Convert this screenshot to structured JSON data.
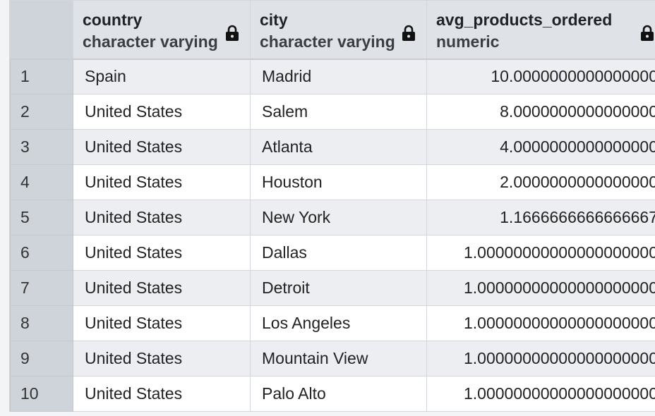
{
  "columns": [
    {
      "name": "country",
      "type": "character varying",
      "locked": true
    },
    {
      "name": "city",
      "type": "character varying",
      "locked": true
    },
    {
      "name": "avg_products_ordered",
      "type": "numeric",
      "locked": true
    }
  ],
  "rows": [
    {
      "num": "1",
      "country": "Spain",
      "city": "Madrid",
      "avg": "10.0000000000000000"
    },
    {
      "num": "2",
      "country": "United States",
      "city": "Salem",
      "avg": "8.0000000000000000"
    },
    {
      "num": "3",
      "country": "United States",
      "city": "Atlanta",
      "avg": "4.0000000000000000"
    },
    {
      "num": "4",
      "country": "United States",
      "city": "Houston",
      "avg": "2.0000000000000000"
    },
    {
      "num": "5",
      "country": "United States",
      "city": "New York",
      "avg": "1.1666666666666667"
    },
    {
      "num": "6",
      "country": "United States",
      "city": "Dallas",
      "avg": "1.00000000000000000000"
    },
    {
      "num": "7",
      "country": "United States",
      "city": "Detroit",
      "avg": "1.00000000000000000000"
    },
    {
      "num": "8",
      "country": "United States",
      "city": "Los Angeles",
      "avg": "1.00000000000000000000"
    },
    {
      "num": "9",
      "country": "United States",
      "city": "Mountain View",
      "avg": "1.00000000000000000000"
    },
    {
      "num": "10",
      "country": "United States",
      "city": "Palo Alto",
      "avg": "1.00000000000000000000"
    }
  ],
  "icons": {
    "lock": "lock-icon"
  }
}
